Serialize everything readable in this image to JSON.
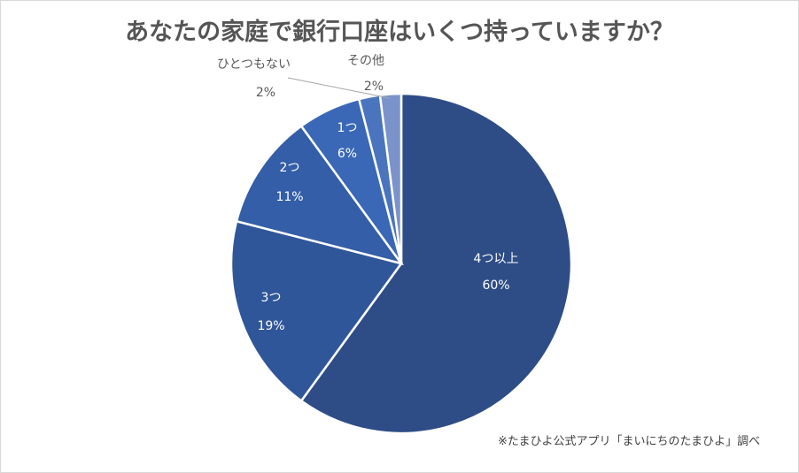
{
  "chart_data": {
    "type": "pie",
    "title": "あなたの家庭で銀行口座はいくつ持っていますか？",
    "start": "top",
    "direction": "clockwise",
    "slices": [
      {
        "label": "4つ以上",
        "value": 60,
        "value_label": "60%",
        "color": "#2e4d87",
        "label_pos": "inside"
      },
      {
        "label": "3つ",
        "value": 19,
        "value_label": "19%",
        "color": "#30569a",
        "label_pos": "inside"
      },
      {
        "label": "2つ",
        "value": 11,
        "value_label": "11%",
        "color": "#345ea7",
        "label_pos": "inside"
      },
      {
        "label": "1つ",
        "value": 6,
        "value_label": "6%",
        "color": "#3a68b6",
        "label_pos": "inside"
      },
      {
        "label": "ひとつもない",
        "value": 2,
        "value_label": "2%",
        "color": "#4a74bd",
        "label_pos": "outside-leader"
      },
      {
        "label": "その他",
        "value": 2,
        "value_label": "2%",
        "color": "#7b93cb",
        "label_pos": "outside"
      }
    ],
    "legend": "none"
  },
  "footnote": "※たまひよ公式アプリ「まいにちのたまひよ」調べ"
}
